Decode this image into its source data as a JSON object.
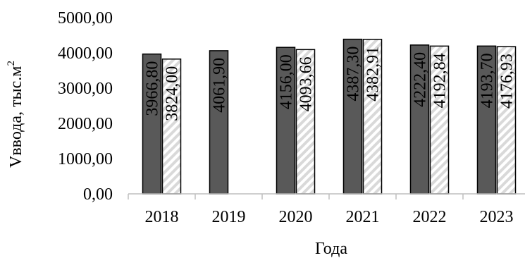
{
  "chart_data": {
    "type": "bar",
    "categories": [
      "2018",
      "2019",
      "2020",
      "2021",
      "2022",
      "2023"
    ],
    "series": [
      {
        "values": [
          3966.8,
          4061.9,
          4156.0,
          4387.3,
          4222.4,
          4193.7
        ],
        "labels": [
          "3966,80",
          "4061,90",
          "4156,00",
          "4387,30",
          "4222,40",
          "4193,70"
        ],
        "fill": "#595959",
        "pattern": "solid"
      },
      {
        "values": [
          3824.0,
          null,
          4093.66,
          4382.91,
          4192.84,
          4176.93
        ],
        "labels": [
          "3824,00",
          "",
          "4093,66",
          "4382,91",
          "4192,84",
          "4176,93"
        ],
        "fill": "#ffffff",
        "pattern": "diagonal-hatch",
        "hatch_color": "#d9d9d9"
      }
    ],
    "yticks": [
      "0,00",
      "1000,00",
      "2000,00",
      "3000,00",
      "4000,00",
      "5000,00"
    ],
    "ylim": [
      0,
      5000
    ],
    "xlabel": "Года",
    "ylabel": "Vввода, тыс.м",
    "ylabel_superscript": "2",
    "grid": false,
    "data_label_orientation": "vertical"
  }
}
